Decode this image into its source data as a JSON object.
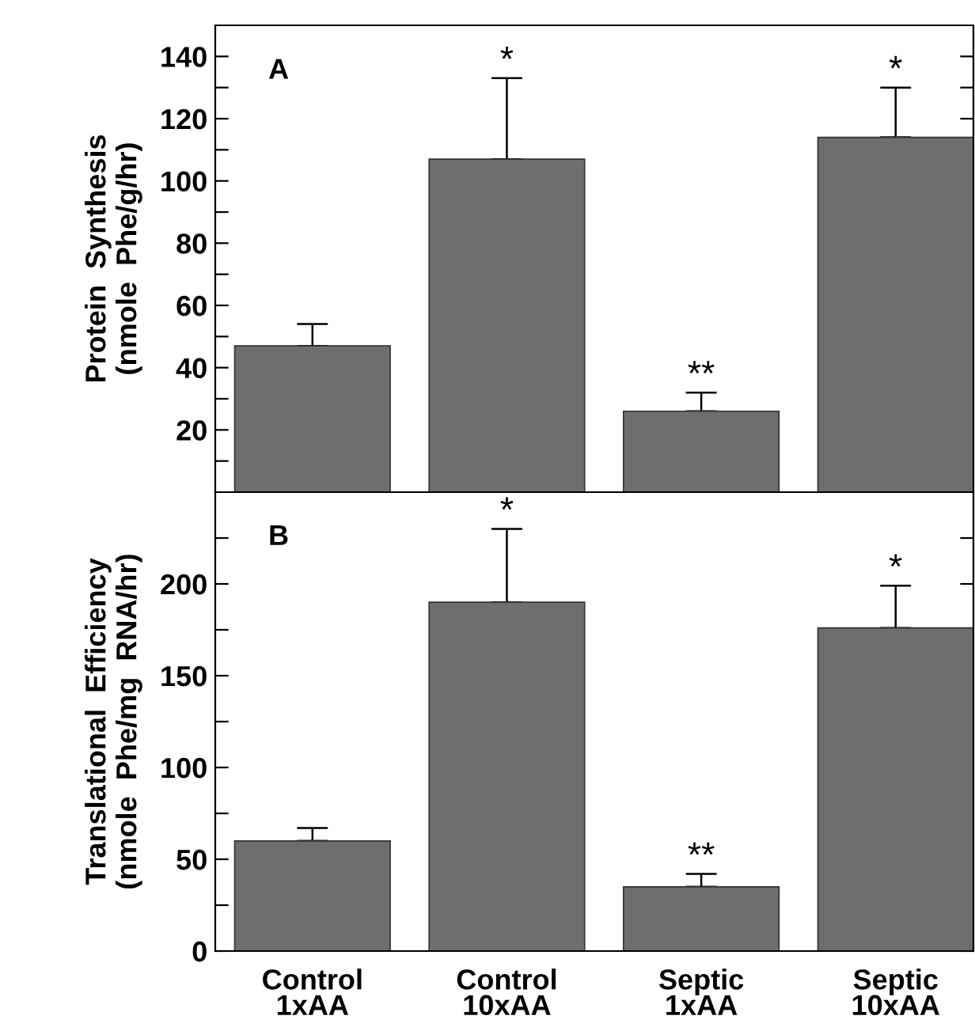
{
  "chart_data": [
    {
      "type": "bar",
      "ylabel": "Protein  Synthesis\n(nmole  Phe/g/hr)",
      "categories": [
        "Control\n1xAA",
        "Control\n10xAA",
        "Septic\n1xAA",
        "Septic\n10xAA"
      ],
      "values": [
        47,
        107,
        26,
        114
      ],
      "errors": [
        [
          47,
          54
        ],
        [
          107,
          133
        ],
        [
          26,
          32
        ],
        [
          114,
          130
        ]
      ],
      "color": "#6e6e6e",
      "ylim": [
        0,
        150
      ],
      "yticks": [
        {
          "value": 10,
          "label": null
        },
        20,
        {
          "value": 30,
          "label": null
        },
        40,
        {
          "value": 50,
          "label": null
        },
        60,
        {
          "value": 70,
          "label": null
        },
        80,
        {
          "value": 90,
          "label": null
        },
        100,
        {
          "value": 110,
          "label": null
        },
        120,
        {
          "value": 130,
          "label": null
        },
        140
      ],
      "tick_labels": "y",
      "annotations": [
        "A",
        {
          "text": "*",
          "x": "Control\n10xAA",
          "y": 133
        },
        {
          "text": "**",
          "x": "Septic\n1xAA",
          "y": 32
        },
        {
          "text": "*",
          "x": "Septic\n10xAA",
          "y": 130
        }
      ]
    },
    {
      "type": "bar",
      "ylabel": "Translational  Efficiency\n(nmole  Phe/mg  RNA/hr)",
      "categories": [
        "Control\n1xAA",
        "Control\n10xAA",
        "Septic\n1xAA",
        "Septic\n10xAA"
      ],
      "values": [
        60,
        190,
        35,
        176
      ],
      "errors": [
        [
          60,
          67
        ],
        [
          190,
          230
        ],
        [
          35,
          42
        ],
        [
          176,
          199
        ]
      ],
      "color": "#6e6e6e",
      "ylim": [
        0,
        250
      ],
      "yticks": [
        0,
        {
          "value": 25,
          "label": null
        },
        50,
        {
          "value": 75,
          "label": null
        },
        100,
        {
          "value": 125,
          "label": null
        },
        150,
        {
          "value": 175,
          "label": null
        },
        200,
        {
          "value": 225,
          "label": null
        }
      ],
      "annotations": [
        "B",
        {
          "text": "*",
          "x": "Control\n10xAA",
          "y": 230
        },
        {
          "text": "**",
          "x": "Septic\n1xAA",
          "y": 42
        },
        {
          "text": "*",
          "x": "Septic\n10xAA",
          "y": 199
        }
      ]
    }
  ]
}
